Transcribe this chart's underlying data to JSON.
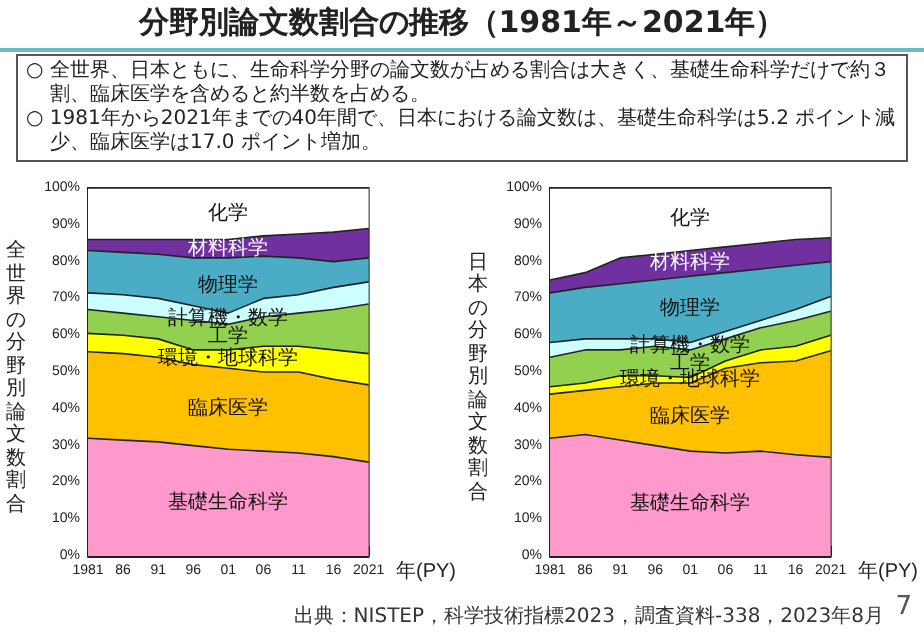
{
  "chart_data": [
    {
      "type": "area",
      "stacked": true,
      "title": "分野別論文数割合の推移（1981年～2021年）",
      "subtitle": [
        "○ 全世界、日本ともに、生命科学分野の論文数が占める割合は大きく、基礎生命科学だけで約３割、臨床医学を含めると約半数を占める。",
        "○ 1981年から2021年までの40年間で、日本における論文数は、基礎生命科学は5.2 ポイント減少、臨床医学は17.0 ポイント増加。"
      ],
      "ylabel": "全世界の分野別論文数割合",
      "xlabel": "年(PY)",
      "x": [
        1981,
        1986,
        1991,
        1996,
        2001,
        2006,
        2011,
        2016,
        2021
      ],
      "xlim": [
        1981,
        2021
      ],
      "xticks": [
        {
          "value": 1981,
          "label": "1981"
        },
        {
          "value": 1986,
          "label": "86"
        },
        {
          "value": 1991,
          "label": "91"
        },
        {
          "value": 1996,
          "label": "96"
        },
        {
          "value": 2001,
          "label": "01"
        },
        {
          "value": 2006,
          "label": "06"
        },
        {
          "value": 2011,
          "label": "11"
        },
        {
          "value": 2016,
          "label": "16"
        },
        {
          "value": 2021,
          "label": "2021"
        }
      ],
      "ylim": [
        0,
        100
      ],
      "yticks": [
        {
          "value": 0,
          "label": "0%"
        },
        {
          "value": 10,
          "label": "10%"
        },
        {
          "value": 20,
          "label": "20%"
        },
        {
          "value": 30,
          "label": "30%"
        },
        {
          "value": 40,
          "label": "40%"
        },
        {
          "value": 50,
          "label": "50%"
        },
        {
          "value": 60,
          "label": "60%"
        },
        {
          "value": 70,
          "label": "70%"
        },
        {
          "value": 80,
          "label": "80%"
        },
        {
          "value": 90,
          "label": "90%"
        },
        {
          "value": 100,
          "label": "100%"
        }
      ],
      "grid": false,
      "legend": false,
      "marker": "none",
      "series": [
        {
          "name": "基礎生命科学",
          "color": "#ff99cc",
          "values": [
            32,
            31.5,
            31,
            30,
            29,
            28.5,
            28,
            27,
            25.5
          ]
        },
        {
          "name": "臨床医学",
          "color": "#ffc000",
          "values": [
            23.5,
            23.5,
            23,
            22,
            22,
            21.5,
            22,
            21,
            21
          ]
        },
        {
          "name": "環境・地球科学",
          "color": "#ffff00",
          "values": [
            5,
            5,
            5,
            4,
            5,
            7,
            7,
            8,
            8.5
          ]
        },
        {
          "name": "工学",
          "color": "#92d050",
          "values": [
            6.5,
            6,
            6,
            8,
            7,
            8,
            9,
            11,
            13.5
          ]
        },
        {
          "name": "計算機・数学",
          "color": "#ccffff",
          "values": [
            4.5,
            5,
            5,
            4,
            3,
            5,
            5,
            6,
            6
          ]
        },
        {
          "name": "物理学",
          "color": "#4bacc6",
          "values": [
            11.5,
            11.5,
            12,
            13,
            15,
            11.5,
            10,
            7,
            6.5
          ]
        },
        {
          "name": "材料科学",
          "color": "#7030a0",
          "values": [
            3,
            3.5,
            4,
            5,
            5,
            5.5,
            6.5,
            8,
            8
          ]
        },
        {
          "name": "化学",
          "color": "#ffffff",
          "values": [
            14,
            14,
            14,
            14,
            14,
            13,
            12.5,
            12,
            11
          ]
        }
      ]
    },
    {
      "type": "area",
      "stacked": true,
      "ylabel": "日本の分野別論文数割合",
      "xlabel": "年(PY)",
      "annotations": [
        "出典：NISTEP，科学技術指標2023，調査資料-338，2023年8月",
        "7"
      ],
      "x": [
        1981,
        1986,
        1991,
        1996,
        2001,
        2006,
        2011,
        2016,
        2021
      ],
      "xlim": [
        1981,
        2021
      ],
      "xticks": [
        {
          "value": 1981,
          "label": "1981"
        },
        {
          "value": 1986,
          "label": "86"
        },
        {
          "value": 1991,
          "label": "91"
        },
        {
          "value": 1996,
          "label": "96"
        },
        {
          "value": 2001,
          "label": "01"
        },
        {
          "value": 2006,
          "label": "06"
        },
        {
          "value": 2011,
          "label": "11"
        },
        {
          "value": 2016,
          "label": "16"
        },
        {
          "value": 2021,
          "label": "2021"
        }
      ],
      "ylim": [
        0,
        100
      ],
      "yticks": [
        {
          "value": 0,
          "label": "0%"
        },
        {
          "value": 10,
          "label": "10%"
        },
        {
          "value": 20,
          "label": "20%"
        },
        {
          "value": 30,
          "label": "30%"
        },
        {
          "value": 40,
          "label": "40%"
        },
        {
          "value": 50,
          "label": "50%"
        },
        {
          "value": 60,
          "label": "60%"
        },
        {
          "value": 70,
          "label": "70%"
        },
        {
          "value": 80,
          "label": "80%"
        },
        {
          "value": 90,
          "label": "90%"
        },
        {
          "value": 100,
          "label": "100%"
        }
      ],
      "grid": false,
      "legend": false,
      "marker": "none",
      "series": [
        {
          "name": "基礎生命科学",
          "color": "#ff99cc",
          "values": [
            32,
            33,
            31.5,
            30,
            28.5,
            28,
            28.5,
            27.5,
            26.8
          ]
        },
        {
          "name": "臨床医学",
          "color": "#ffc000",
          "values": [
            12,
            12,
            14.5,
            17,
            18.5,
            23,
            24,
            25.5,
            29
          ]
        },
        {
          "name": "環境・地球科学",
          "color": "#ffff00",
          "values": [
            2,
            2,
            3,
            2,
            1.5,
            2,
            3.5,
            4,
            4.2
          ]
        },
        {
          "name": "工学",
          "color": "#92d050",
          "values": [
            8,
            9,
            7,
            8,
            7.5,
            6,
            6,
            7,
            6.5
          ]
        },
        {
          "name": "計算機・数学",
          "color": "#ccffff",
          "values": [
            4,
            3,
            3,
            2,
            2,
            2,
            2,
            3,
            4
          ]
        },
        {
          "name": "物理学",
          "color": "#4bacc6",
          "values": [
            13.5,
            14,
            15,
            16,
            18,
            16,
            14,
            12,
            9.5
          ]
        },
        {
          "name": "材料科学",
          "color": "#7030a0",
          "values": [
            3.5,
            4,
            7,
            7,
            7,
            7,
            7,
            7,
            6.5
          ]
        },
        {
          "name": "化学",
          "color": "#ffffff",
          "values": [
            25,
            23,
            19,
            18,
            17,
            16,
            15,
            14,
            13.5
          ]
        }
      ]
    }
  ]
}
